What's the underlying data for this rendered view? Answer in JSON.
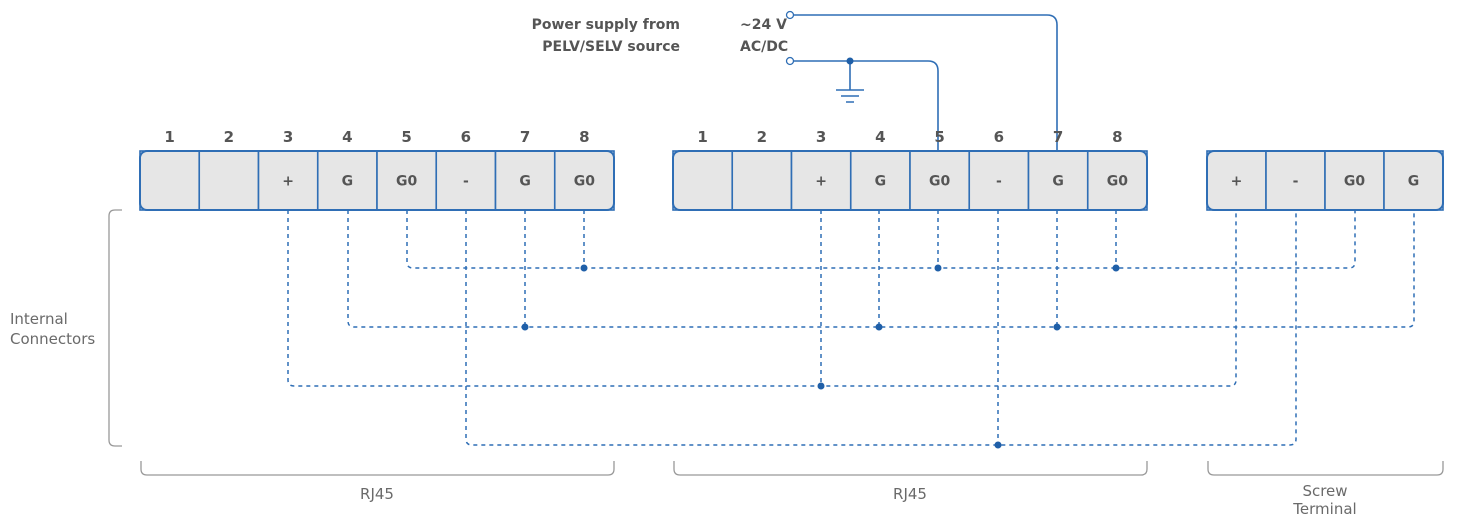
{
  "supply": {
    "source_line1": "Power supply from",
    "source_line2": "PELV/SELV source",
    "voltage_line1": "~24 V",
    "voltage_line2": "AC/DC"
  },
  "connectors": [
    {
      "kind": "RJ45",
      "pin_numbers": [
        "1",
        "2",
        "3",
        "4",
        "5",
        "6",
        "7",
        "8"
      ],
      "cells": [
        "",
        "",
        "+",
        "G",
        "G0",
        "-",
        "G",
        "G0"
      ]
    },
    {
      "kind": "RJ45",
      "pin_numbers": [
        "1",
        "2",
        "3",
        "4",
        "5",
        "6",
        "7",
        "8"
      ],
      "cells": [
        "",
        "",
        "+",
        "G",
        "G0",
        "-",
        "G",
        "G0"
      ]
    },
    {
      "kind": "Screw Terminal",
      "pin_numbers": [],
      "cells": [
        "+",
        "-",
        "G0",
        "G"
      ]
    }
  ],
  "groups": {
    "internal_line1": "Internal",
    "internal_line2": "Connectors",
    "rj45_a": "RJ45",
    "rj45_b": "RJ45",
    "screw_line1": "Screw",
    "screw_line2": "Terminal"
  },
  "colors": {
    "wire": "#2f6eb5",
    "cell_fill": "#e6e6e6",
    "text": "#555555"
  }
}
